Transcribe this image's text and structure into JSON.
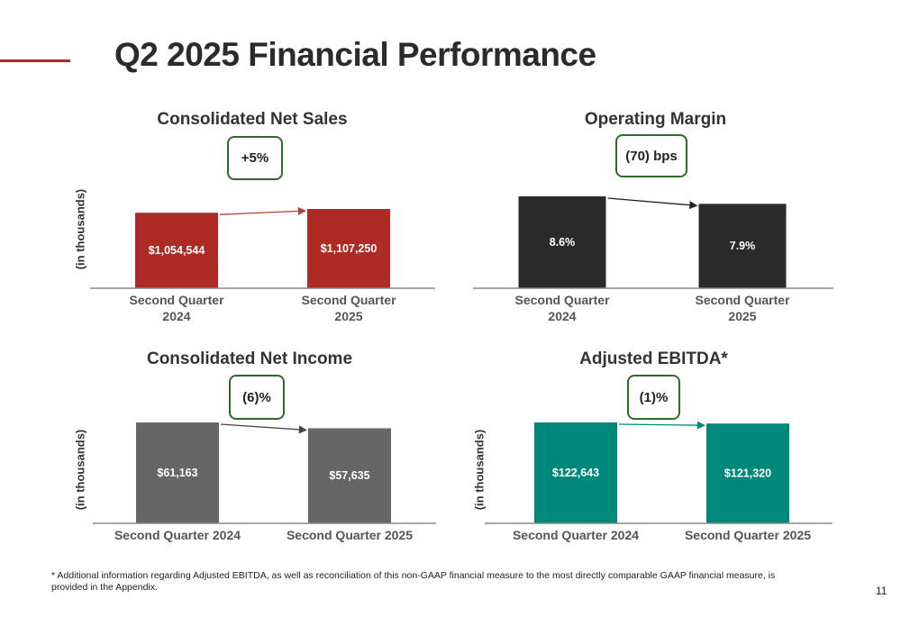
{
  "header": {
    "title": "Q2 2025 Financial Performance"
  },
  "panels": [
    {
      "title": "Consolidated Net Sales",
      "change": "+5%",
      "ylabel": "(in thousands)",
      "color": "#ae2a24",
      "arrow_color": "#c0392b"
    },
    {
      "title": "Operating Margin",
      "change": "(70) bps",
      "ylabel": "",
      "color": "#2a2a2a",
      "arrow_color": "#222222"
    },
    {
      "title": "Consolidated Net Income",
      "change": "(6)%",
      "ylabel": "(in thousands)",
      "color": "#666666",
      "arrow_color": "#444444"
    },
    {
      "title": "Adjusted EBITDA*",
      "change": "(1)%",
      "ylabel": "(in thousands)",
      "color": "#00897b",
      "arrow_color": "#00897b"
    }
  ],
  "chart_data": [
    {
      "type": "bar",
      "title": "Consolidated Net Sales",
      "ylabel": "(in thousands)",
      "categories": [
        [
          "Second Quarter",
          "2024"
        ],
        [
          "Second Quarter",
          "2025"
        ]
      ],
      "values": [
        1054544,
        1107250
      ],
      "value_labels": [
        "$1,054,544",
        "$1,107,250"
      ],
      "ylim": [
        0,
        1107250
      ]
    },
    {
      "type": "bar",
      "title": "Operating Margin",
      "ylabel": "",
      "categories": [
        [
          "Second Quarter",
          "2024"
        ],
        [
          "Second Quarter",
          "2025"
        ]
      ],
      "values": [
        8.6,
        7.9
      ],
      "value_labels": [
        "8.6%",
        "7.9%"
      ],
      "ylim": [
        0,
        8.6
      ]
    },
    {
      "type": "bar",
      "title": "Consolidated Net Income",
      "ylabel": "(in thousands)",
      "categories": [
        [
          "Second Quarter 2024"
        ],
        [
          "Second Quarter 2025"
        ]
      ],
      "values": [
        61163,
        57635
      ],
      "value_labels": [
        "$61,163",
        "$57,635"
      ],
      "ylim": [
        0,
        61163
      ]
    },
    {
      "type": "bar",
      "title": "Adjusted EBITDA*",
      "ylabel": "(in thousands)",
      "categories": [
        [
          "Second Quarter 2024"
        ],
        [
          "Second Quarter 2025"
        ]
      ],
      "values": [
        122643,
        121320
      ],
      "value_labels": [
        "$122,643",
        "$121,320"
      ],
      "ylim": [
        0,
        122643
      ]
    }
  ],
  "footer": {
    "footnote": "* Additional information regarding Adjusted EBITDA, as well as reconciliation of this non-GAAP financial measure to the most directly comparable GAAP financial measure, is provided in the Appendix.",
    "page_number": "11"
  }
}
